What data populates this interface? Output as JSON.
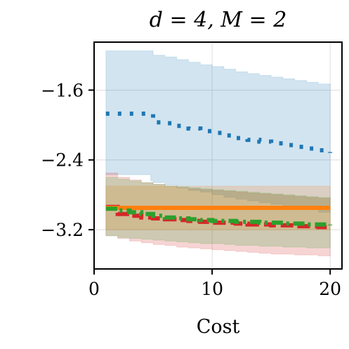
{
  "chart_data": {
    "type": "line",
    "title": "d = 4, M = 2",
    "xlabel": "Cost",
    "ylabel": "",
    "xlim": [
      0,
      21
    ],
    "ylim": [
      -3.65,
      -1.05
    ],
    "xticks": [
      0,
      10,
      20
    ],
    "xtick_labels": [
      "0",
      "10",
      "20"
    ],
    "yticks": [
      -1.6,
      -2.4,
      -3.2
    ],
    "ytick_labels": [
      "−1.6",
      "−2.4",
      "−3.2"
    ],
    "grid": true,
    "legend": "none",
    "series": [
      {
        "color": "#1f77b4",
        "linestyle": "dotted",
        "x": [
          1,
          2,
          3,
          4,
          4.8,
          5,
          6,
          7,
          8,
          9,
          10,
          11,
          12,
          13,
          14,
          15,
          16,
          17,
          18,
          19,
          20
        ],
        "y": [
          -1.87,
          -1.87,
          -1.87,
          -1.87,
          -1.87,
          -1.97,
          -1.98,
          -2.01,
          -2.04,
          -2.07,
          -2.09,
          -2.12,
          -2.15,
          -2.17,
          -2.19,
          -2.21,
          -2.23,
          -2.25,
          -2.27,
          -2.29,
          -2.32
        ],
        "band_upper": [
          -1.15,
          -1.15,
          -1.15,
          -1.15,
          -1.15,
          -1.2,
          -1.22,
          -1.25,
          -1.28,
          -1.31,
          -1.33,
          -1.36,
          -1.39,
          -1.41,
          -1.43,
          -1.45,
          -1.47,
          -1.49,
          -1.51,
          -1.53,
          -1.56
        ],
        "band_lower": [
          -2.57,
          -2.57,
          -2.57,
          -2.57,
          -2.57,
          -2.64,
          -2.66,
          -2.69,
          -2.72,
          -2.75,
          -2.77,
          -2.8,
          -2.83,
          -2.85,
          -2.87,
          -2.89,
          -2.91,
          -2.93,
          -2.95,
          -2.97,
          -3.0
        ]
      },
      {
        "color": "#d62728",
        "linestyle": "dashed",
        "x": [
          1,
          2,
          3,
          4,
          5,
          6,
          7,
          8,
          9,
          10,
          11,
          12,
          13,
          14,
          15,
          16,
          17,
          18,
          19,
          20
        ],
        "y": [
          -2.94,
          -3.02,
          -3.04,
          -3.06,
          -3.07,
          -3.08,
          -3.09,
          -3.1,
          -3.11,
          -3.12,
          -3.12,
          -3.13,
          -3.14,
          -3.14,
          -3.15,
          -3.15,
          -3.16,
          -3.16,
          -3.17,
          -3.17
        ],
        "band_upper": [
          -2.55,
          -2.6,
          -2.63,
          -2.66,
          -2.68,
          -2.7,
          -2.72,
          -2.73,
          -2.74,
          -2.75,
          -2.76,
          -2.77,
          -2.78,
          -2.79,
          -2.8,
          -2.81,
          -2.82,
          -2.83,
          -2.84,
          -2.85
        ],
        "band_lower": [
          -3.2,
          -3.27,
          -3.3,
          -3.33,
          -3.35,
          -3.37,
          -3.38,
          -3.4,
          -3.41,
          -3.42,
          -3.43,
          -3.44,
          -3.45,
          -3.46,
          -3.47,
          -3.48,
          -3.48,
          -3.49,
          -3.49,
          -3.5
        ]
      },
      {
        "color": "#ff7f0e",
        "linestyle": "solid",
        "x": [
          1,
          20
        ],
        "y": [
          -2.95,
          -2.95
        ],
        "band_upper": [
          -2.7,
          -2.7
        ],
        "band_lower": [
          -3.2,
          -3.2
        ]
      },
      {
        "color": "#2ca02c",
        "linestyle": "dashdot",
        "x": [
          1,
          2,
          3,
          4,
          5,
          6,
          7,
          8,
          9,
          10,
          11,
          12,
          13,
          14,
          15,
          16,
          17,
          18,
          19,
          20
        ],
        "y": [
          -2.96,
          -2.98,
          -3.0,
          -3.02,
          -3.04,
          -3.06,
          -3.07,
          -3.08,
          -3.09,
          -3.1,
          -3.1,
          -3.11,
          -3.11,
          -3.12,
          -3.12,
          -3.13,
          -3.13,
          -3.14,
          -3.14,
          -3.15
        ],
        "band_upper": [
          -2.6,
          -2.62,
          -2.64,
          -2.66,
          -2.68,
          -2.7,
          -2.71,
          -2.72,
          -2.73,
          -2.74,
          -2.75,
          -2.76,
          -2.77,
          -2.78,
          -2.79,
          -2.8,
          -2.81,
          -2.82,
          -2.83,
          -2.84
        ],
        "band_lower": [
          -3.25,
          -3.27,
          -3.29,
          -3.3,
          -3.31,
          -3.32,
          -3.33,
          -3.34,
          -3.35,
          -3.36,
          -3.36,
          -3.37,
          -3.38,
          -3.38,
          -3.39,
          -3.39,
          -3.4,
          -3.4,
          -3.41,
          -3.41
        ]
      }
    ]
  }
}
